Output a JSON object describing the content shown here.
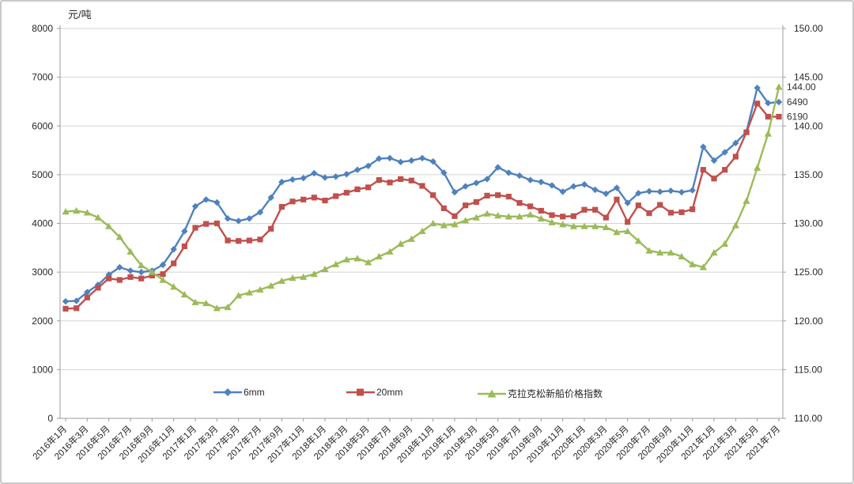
{
  "chart_data": {
    "type": "line",
    "title": "",
    "y_left_axis": {
      "title": "元/吨",
      "min": 0,
      "max": 8000,
      "step": 1000
    },
    "y_right_axis": {
      "min": 110,
      "max": 150,
      "step": 5,
      "decimals": 2
    },
    "x_axis": {
      "first_label": "2016年1月",
      "last_label": "2021年7月",
      "label_every_n_points": 2
    },
    "months": [
      "2016年1月",
      "2016年2月",
      "2016年3月",
      "2016年4月",
      "2016年5月",
      "2016年6月",
      "2016年7月",
      "2016年8月",
      "2016年9月",
      "2016年10月",
      "2016年11月",
      "2016年12月",
      "2017年1月",
      "2017年2月",
      "2017年3月",
      "2017年4月",
      "2017年5月",
      "2017年6月",
      "2017年7月",
      "2017年8月",
      "2017年9月",
      "2017年10月",
      "2017年11月",
      "2017年12月",
      "2018年1月",
      "2018年2月",
      "2018年3月",
      "2018年4月",
      "2018年5月",
      "2018年6月",
      "2018年7月",
      "2018年8月",
      "2018年9月",
      "2018年10月",
      "2018年11月",
      "2018年12月",
      "2019年1月",
      "2019年2月",
      "2019年3月",
      "2019年4月",
      "2019年5月",
      "2019年6月",
      "2019年7月",
      "2019年8月",
      "2019年9月",
      "2019年10月",
      "2019年11月",
      "2019年12月",
      "2020年1月",
      "2020年2月",
      "2020年3月",
      "2020年4月",
      "2020年5月",
      "2020年6月",
      "2020年7月",
      "2020年8月",
      "2020年9月",
      "2020年10月",
      "2020年11月",
      "2020年12月",
      "2021年1月",
      "2021年2月",
      "2021年3月",
      "2021年4月",
      "2021年5月",
      "2021年6月",
      "2021年7月"
    ],
    "series": [
      {
        "name": "6mm",
        "axis": "left",
        "marker": "diamond",
        "color": "#4F81BD",
        "end_label": "6490",
        "values": [
          2400,
          2410,
          2590,
          2740,
          2950,
          3100,
          3030,
          3000,
          3030,
          3150,
          3470,
          3840,
          4350,
          4490,
          4430,
          4100,
          4050,
          4100,
          4230,
          4530,
          4850,
          4900,
          4930,
          5030,
          4940,
          4960,
          5010,
          5100,
          5180,
          5330,
          5340,
          5260,
          5290,
          5340,
          5270,
          5040,
          4640,
          4760,
          4830,
          4910,
          5150,
          5040,
          4980,
          4890,
          4850,
          4780,
          4650,
          4760,
          4800,
          4690,
          4610,
          4730,
          4420,
          4620,
          4660,
          4650,
          4670,
          4640,
          4680,
          5570,
          5290,
          5460,
          5650,
          5880,
          6780,
          6470,
          6490
        ]
      },
      {
        "name": "20mm",
        "axis": "left",
        "marker": "square",
        "color": "#C0504D",
        "end_label": "6190",
        "values": [
          2250,
          2260,
          2480,
          2680,
          2870,
          2840,
          2900,
          2870,
          2930,
          2960,
          3180,
          3530,
          3910,
          3990,
          4000,
          3650,
          3640,
          3650,
          3670,
          3890,
          4340,
          4450,
          4490,
          4530,
          4470,
          4560,
          4630,
          4700,
          4740,
          4890,
          4840,
          4910,
          4880,
          4770,
          4580,
          4310,
          4150,
          4370,
          4440,
          4570,
          4580,
          4550,
          4420,
          4350,
          4260,
          4170,
          4140,
          4150,
          4280,
          4280,
          4120,
          4490,
          4030,
          4370,
          4210,
          4380,
          4220,
          4230,
          4290,
          5100,
          4920,
          5100,
          5370,
          5870,
          6460,
          6190,
          6190
        ]
      },
      {
        "name": "克拉克松新船价格指数",
        "axis": "right",
        "marker": "triangle",
        "color": "#9BBB59",
        "end_label": "144.00",
        "values": [
          131.2,
          131.3,
          131.1,
          130.6,
          129.7,
          128.6,
          127.1,
          125.7,
          125.0,
          124.2,
          123.5,
          122.7,
          121.9,
          121.8,
          121.3,
          121.4,
          122.6,
          122.9,
          123.2,
          123.6,
          124.1,
          124.4,
          124.5,
          124.8,
          125.3,
          125.8,
          126.3,
          126.4,
          126.0,
          126.6,
          127.1,
          127.9,
          128.4,
          129.2,
          130.0,
          129.8,
          129.9,
          130.3,
          130.6,
          131.0,
          130.8,
          130.7,
          130.7,
          130.9,
          130.5,
          130.1,
          129.9,
          129.7,
          129.7,
          129.7,
          129.6,
          129.1,
          129.2,
          128.2,
          127.2,
          127.0,
          127.0,
          126.6,
          125.8,
          125.5,
          127.0,
          127.9,
          129.8,
          132.3,
          135.7,
          139.2,
          144.0
        ]
      }
    ],
    "grid": true,
    "legend_position": "bottom-inline"
  }
}
